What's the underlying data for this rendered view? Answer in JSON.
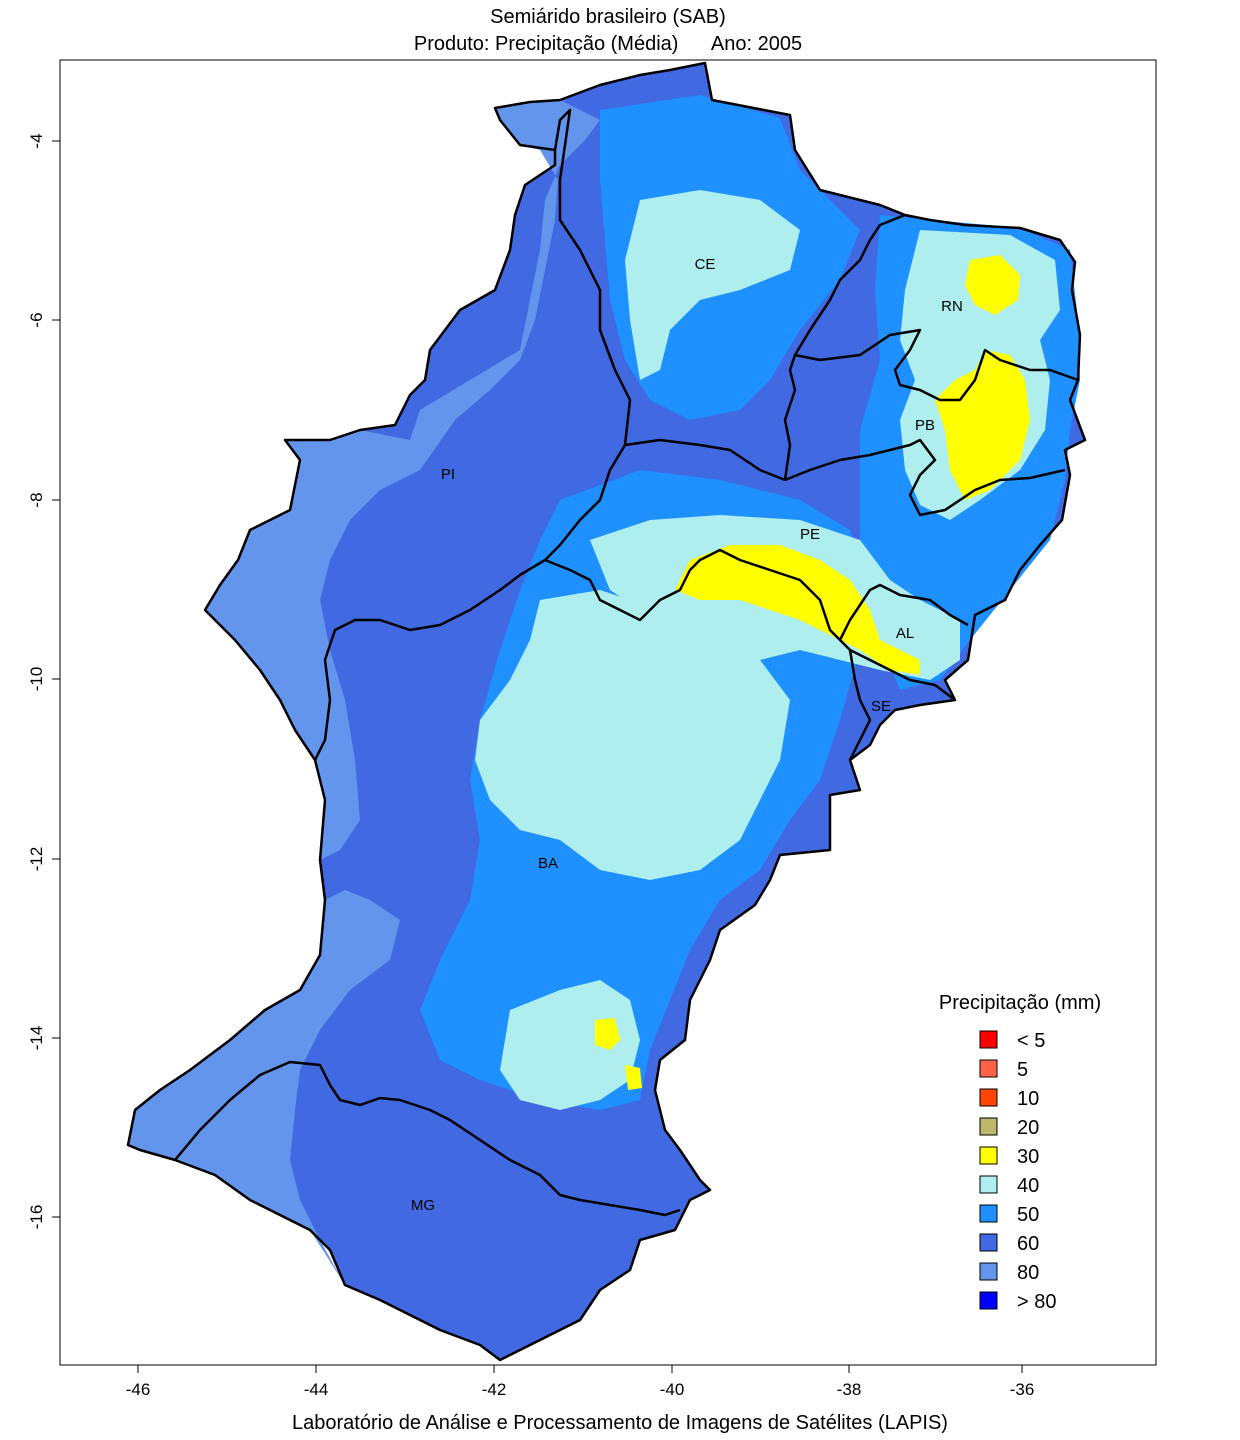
{
  "title": "Semiárido brasileiro (SAB)",
  "subtitle": {
    "product_label": "Produto:",
    "product_value": "Precipitação (Média)",
    "year_label": "Ano:",
    "year_value": "2005"
  },
  "footer": "Laboratório de Análise e Processamento de Imagens de Satélites (LAPIS)",
  "axes": {
    "x_ticks": [
      "-46",
      "-44",
      "-42",
      "-40",
      "-38",
      "-36"
    ],
    "y_ticks": [
      "-4",
      "-6",
      "-8",
      "-10",
      "-12",
      "-14",
      "-16"
    ]
  },
  "states": [
    {
      "id": "CE",
      "name": "CE"
    },
    {
      "id": "RN",
      "name": "RN"
    },
    {
      "id": "PB",
      "name": "PB"
    },
    {
      "id": "PI",
      "name": "PI"
    },
    {
      "id": "PE",
      "name": "PE"
    },
    {
      "id": "AL",
      "name": "AL"
    },
    {
      "id": "SE",
      "name": "SE"
    },
    {
      "id": "BA",
      "name": "BA"
    },
    {
      "id": "MG",
      "name": "MG"
    }
  ],
  "legend": {
    "title": "Precipitação (mm)",
    "items": [
      {
        "label": "< 5",
        "color": "#ff0000"
      },
      {
        "label": "5",
        "color": "#ff6347"
      },
      {
        "label": "10",
        "color": "#ff4500"
      },
      {
        "label": "20",
        "color": "#bdb76b"
      },
      {
        "label": "30",
        "color": "#ffff00"
      },
      {
        "label": "40",
        "color": "#aeeeee"
      },
      {
        "label": "50",
        "color": "#1e90ff"
      },
      {
        "label": "60",
        "color": "#4169e1"
      },
      {
        "label": "80",
        "color": "#6495ed"
      },
      {
        "label": "> 80",
        "color": "#0000ff"
      }
    ]
  }
}
